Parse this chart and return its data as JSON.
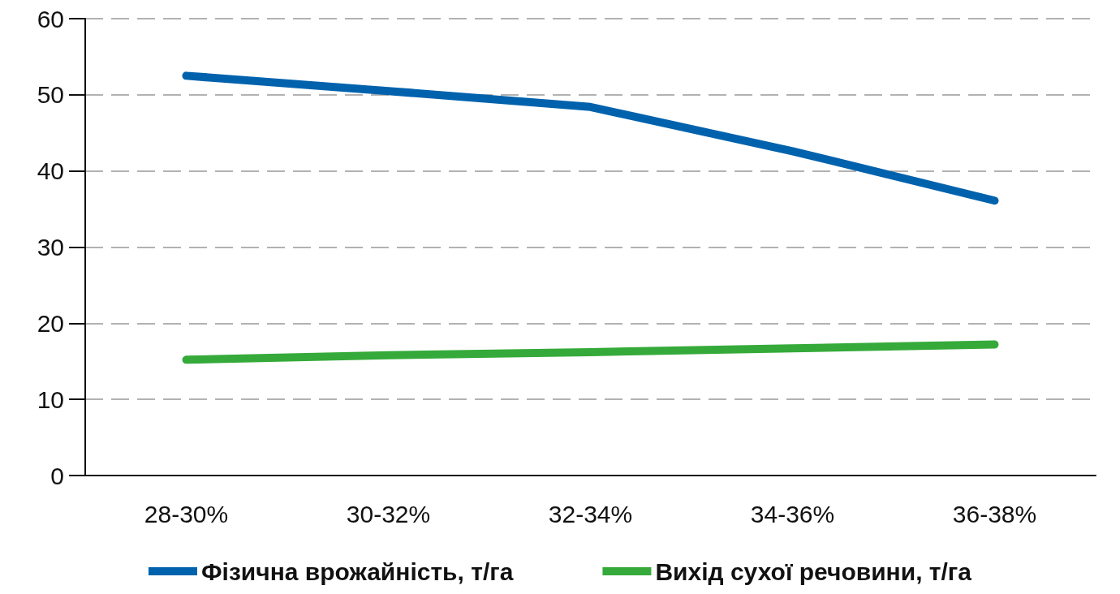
{
  "chart_data": {
    "type": "line",
    "categories": [
      "28-30%",
      "30-32%",
      "32-34%",
      "34-36%",
      "36-38%"
    ],
    "series": [
      {
        "name": "Фізична врожайність, т/га",
        "color": "#0062ad",
        "values": [
          52.5,
          50.5,
          48.4,
          42.6,
          36.1
        ]
      },
      {
        "name": "Вихід сухої речовини, т/га",
        "color": "#35aa3a",
        "values": [
          15.2,
          15.8,
          16.2,
          16.7,
          17.2
        ]
      }
    ],
    "ylim": [
      0,
      60
    ],
    "yticks": [
      0,
      10,
      20,
      30,
      40,
      50,
      60
    ],
    "grid": "y",
    "legend": "bottom",
    "line_style": "solid"
  }
}
